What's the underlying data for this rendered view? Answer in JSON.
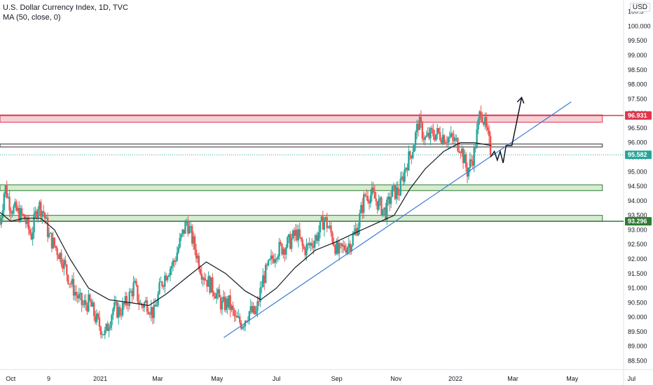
{
  "header": {
    "symbol_line": "U.S. Dollar Currency Index, 1D, TVC",
    "indicator_line": "MA (50, close, 0)"
  },
  "currency": "USD",
  "chart_data": {
    "type": "candlestick",
    "title": "U.S. Dollar Currency Index, 1D, TVC",
    "indicator": "MA (50, close, 0)",
    "y_ticks": [
      "88.500",
      "89.000",
      "89.500",
      "90.000",
      "90.500",
      "91.000",
      "91.500",
      "92.000",
      "92.500",
      "93.000",
      "93.500",
      "94.000",
      "94.500",
      "95.000",
      "95.500",
      "96.000",
      "96.500",
      "97.000",
      "97.500",
      "98.000",
      "98.500",
      "99.000",
      "99.500",
      "100.000",
      "100.5"
    ],
    "y_tick_values": [
      88.5,
      89,
      89.5,
      90,
      90.5,
      91,
      91.5,
      92,
      92.5,
      93,
      93.5,
      94,
      94.5,
      95,
      95.5,
      96,
      96.5,
      97,
      97.5,
      98,
      98.5,
      99,
      99.5,
      100,
      100.5
    ],
    "x_ticks": [
      {
        "label": "Oct",
        "date": "2020-10-01"
      },
      {
        "label": "9",
        "date": "2020-11-09"
      },
      {
        "label": "2021",
        "date": "2021-01-01"
      },
      {
        "label": "Mar",
        "date": "2021-03-01"
      },
      {
        "label": "May",
        "date": "2021-05-01"
      },
      {
        "label": "Jul",
        "date": "2021-07-01"
      },
      {
        "label": "Sep",
        "date": "2021-09-01"
      },
      {
        "label": "Nov",
        "date": "2021-11-01"
      },
      {
        "label": "2022",
        "date": "2022-01-01"
      },
      {
        "label": "Mar",
        "date": "2022-03-01"
      },
      {
        "label": "May",
        "date": "2022-05-01"
      },
      {
        "label": "Jul",
        "date": "2022-07-01"
      }
    ],
    "ylim": [
      88.2,
      100.9
    ],
    "xlim": [
      "2020-09-20",
      "2022-07-23"
    ],
    "close_path": [
      [
        "2020-09-20",
        93.2
      ],
      [
        "2020-09-25",
        94.5
      ],
      [
        "2020-10-01",
        93.8
      ],
      [
        "2020-10-08",
        93.6
      ],
      [
        "2020-10-15",
        93.4
      ],
      [
        "2020-10-22",
        92.8
      ],
      [
        "2020-10-29",
        93.9
      ],
      [
        "2020-11-04",
        93.6
      ],
      [
        "2020-11-09",
        92.8
      ],
      [
        "2020-11-16",
        92.4
      ],
      [
        "2020-11-23",
        92.0
      ],
      [
        "2020-11-30",
        91.3
      ],
      [
        "2020-12-07",
        90.8
      ],
      [
        "2020-12-14",
        90.4
      ],
      [
        "2020-12-21",
        90.5
      ],
      [
        "2020-12-28",
        89.9
      ],
      [
        "2021-01-06",
        89.4
      ],
      [
        "2021-01-14",
        90.3
      ],
      [
        "2021-01-21",
        90.2
      ],
      [
        "2021-01-28",
        90.5
      ],
      [
        "2021-02-05",
        91.1
      ],
      [
        "2021-02-11",
        90.4
      ],
      [
        "2021-02-18",
        90.5
      ],
      [
        "2021-02-25",
        90.1
      ],
      [
        "2021-03-04",
        91.1
      ],
      [
        "2021-03-11",
        91.6
      ],
      [
        "2021-03-18",
        91.9
      ],
      [
        "2021-03-25",
        92.7
      ],
      [
        "2021-03-31",
        93.3
      ],
      [
        "2021-04-08",
        92.4
      ],
      [
        "2021-04-15",
        91.6
      ],
      [
        "2021-04-22",
        91.2
      ],
      [
        "2021-04-29",
        90.9
      ],
      [
        "2021-05-06",
        90.4
      ],
      [
        "2021-05-13",
        90.5
      ],
      [
        "2021-05-20",
        89.9
      ],
      [
        "2021-05-27",
        89.8
      ],
      [
        "2021-06-03",
        90.2
      ],
      [
        "2021-06-10",
        90.1
      ],
      [
        "2021-06-17",
        91.3
      ],
      [
        "2021-06-24",
        91.8
      ],
      [
        "2021-07-01",
        92.3
      ],
      [
        "2021-07-08",
        92.4
      ],
      [
        "2021-07-15",
        92.6
      ],
      [
        "2021-07-22",
        92.9
      ],
      [
        "2021-07-29",
        92.3
      ],
      [
        "2021-08-05",
        92.5
      ],
      [
        "2021-08-12",
        92.8
      ],
      [
        "2021-08-19",
        93.4
      ],
      [
        "2021-08-26",
        92.9
      ],
      [
        "2021-09-02",
        92.2
      ],
      [
        "2021-09-09",
        92.4
      ],
      [
        "2021-09-16",
        92.6
      ],
      [
        "2021-09-23",
        93.2
      ],
      [
        "2021-09-30",
        94.2
      ],
      [
        "2021-10-07",
        94.2
      ],
      [
        "2021-10-14",
        93.9
      ],
      [
        "2021-10-21",
        93.6
      ],
      [
        "2021-10-28",
        94.3
      ],
      [
        "2021-11-04",
        94.3
      ],
      [
        "2021-11-11",
        95.2
      ],
      [
        "2021-11-18",
        95.8
      ],
      [
        "2021-11-24",
        96.7
      ],
      [
        "2021-12-01",
        96.1
      ],
      [
        "2021-12-08",
        96.3
      ],
      [
        "2021-12-15",
        96.3
      ],
      [
        "2021-12-22",
        96.2
      ],
      [
        "2021-12-29",
        96.1
      ],
      [
        "2022-01-06",
        95.9
      ],
      [
        "2022-01-13",
        95.0
      ],
      [
        "2022-01-20",
        95.6
      ],
      [
        "2022-01-27",
        97.2
      ],
      [
        "2022-02-01",
        96.5
      ],
      [
        "2022-02-07",
        95.6
      ]
    ],
    "moving_average": [
      [
        "2020-09-20",
        93.6
      ],
      [
        "2020-10-01",
        93.3
      ],
      [
        "2020-10-15",
        93.4
      ],
      [
        "2020-11-01",
        93.4
      ],
      [
        "2020-11-15",
        93.0
      ],
      [
        "2020-12-01",
        92.0
      ],
      [
        "2020-12-20",
        91.0
      ],
      [
        "2021-01-10",
        90.6
      ],
      [
        "2021-02-01",
        90.5
      ],
      [
        "2021-02-20",
        90.4
      ],
      [
        "2021-03-10",
        90.8
      ],
      [
        "2021-04-01",
        91.4
      ],
      [
        "2021-04-20",
        91.9
      ],
      [
        "2021-05-10",
        91.5
      ],
      [
        "2021-05-30",
        90.9
      ],
      [
        "2021-06-15",
        90.6
      ],
      [
        "2021-07-01",
        91.0
      ],
      [
        "2021-07-20",
        91.7
      ],
      [
        "2021-08-10",
        92.3
      ],
      [
        "2021-09-01",
        92.6
      ],
      [
        "2021-09-20",
        92.9
      ],
      [
        "2021-10-10",
        93.2
      ],
      [
        "2021-10-30",
        93.5
      ],
      [
        "2021-11-15",
        94.4
      ],
      [
        "2021-12-01",
        95.1
      ],
      [
        "2021-12-20",
        95.7
      ],
      [
        "2022-01-06",
        96.0
      ],
      [
        "2022-01-20",
        96.0
      ],
      [
        "2022-02-07",
        95.9
      ]
    ],
    "horizontal_zones": [
      {
        "name": "resistance",
        "low": 96.7,
        "high": 96.95,
        "fill": "#f6d0d6",
        "stroke": "#e0364b",
        "x_end": "2022-06-01"
      },
      {
        "name": "level",
        "low": 95.85,
        "high": 95.95,
        "fill": "#ffffff",
        "stroke": "#2a2a2a",
        "x_end": "2022-06-01"
      },
      {
        "name": "support-upper",
        "low": 94.35,
        "high": 94.55,
        "fill": "#d6ebd0",
        "stroke": "#2e7d32",
        "x_end": "2022-06-01"
      },
      {
        "name": "support-lower",
        "low": 93.3,
        "high": 93.5,
        "fill": "#d6ebd0",
        "stroke": "#2e7d32",
        "x_end": "2022-06-01"
      }
    ],
    "resistance_line": {
      "value": 96.931,
      "color": "#e0364b"
    },
    "support_line": {
      "value": 93.296,
      "color": "#2e7d32"
    },
    "trendline": {
      "start": [
        "2021-05-08",
        89.3
      ],
      "end": [
        "2022-04-30",
        97.4
      ],
      "color": "#3a7bd5"
    },
    "projection_path": [
      [
        "2022-02-06",
        95.5
      ],
      [
        "2022-02-10",
        95.7
      ],
      [
        "2022-02-13",
        95.4
      ],
      [
        "2022-02-16",
        95.7
      ],
      [
        "2022-02-19",
        95.3
      ],
      [
        "2022-02-22",
        95.9
      ],
      [
        "2022-02-28",
        95.9
      ],
      [
        "2022-03-10",
        97.55
      ]
    ],
    "price_tags": [
      {
        "value": 96.931,
        "label": "96.931",
        "color": "#e0364b"
      },
      {
        "value": 95.582,
        "label": "95.582",
        "color": "#26a69a"
      },
      {
        "value": 93.296,
        "label": "93.296",
        "color": "#2e7d32"
      }
    ],
    "last_price_line": {
      "value": 95.582,
      "color": "#26a69a"
    },
    "up_color": "#26a69a",
    "down_color": "#ef5350",
    "ma_color": "#131722",
    "grid": false
  }
}
